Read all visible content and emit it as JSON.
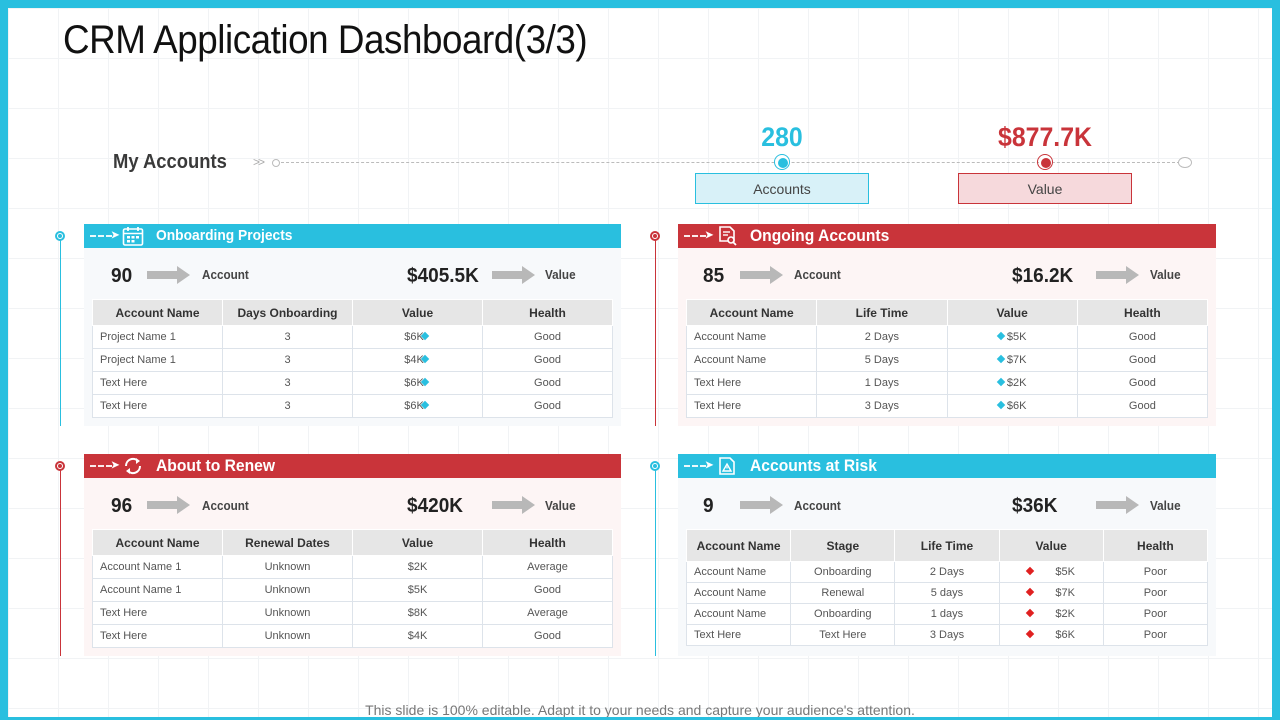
{
  "title": "CRM Application Dashboard(3/3)",
  "my_accounts": {
    "label": "My Accounts",
    "accounts_count": "280",
    "accounts_label": "Accounts",
    "value_amount": "$877.7K",
    "value_label": "Value"
  },
  "colors": {
    "blue": "#29bfdf",
    "red": "#c9343a"
  },
  "panels": {
    "onboarding": {
      "title": "Onboarding Projects",
      "icon": "calendar-icon",
      "count": "90",
      "count_label": "Account",
      "value": "$405.5K",
      "value_label": "Value",
      "columns": [
        "Account Name",
        "Days Onboarding",
        "Value",
        "Health"
      ],
      "rows": [
        [
          "Project Name 1",
          "3",
          "$6K",
          "Good"
        ],
        [
          "Project Name 1",
          "3",
          "$4K",
          "Good"
        ],
        [
          "Text Here",
          "3",
          "$6K",
          "Good"
        ],
        [
          "Text Here",
          "3",
          "$6K",
          "Good"
        ]
      ]
    },
    "ongoing": {
      "title": "Ongoing Accounts",
      "icon": "document-search-icon",
      "count": "85",
      "count_label": "Account",
      "value": "$16.2K",
      "value_label": "Value",
      "columns": [
        "Account Name",
        "Life Time",
        "Value",
        "Health"
      ],
      "rows": [
        [
          "Account Name",
          "2 Days",
          "$5K",
          "Good"
        ],
        [
          "Account Name",
          "5 Days",
          "$7K",
          "Good"
        ],
        [
          "Text Here",
          "1 Days",
          "$2K",
          "Good"
        ],
        [
          "Text Here",
          "3 Days",
          "$6K",
          "Good"
        ]
      ]
    },
    "renew": {
      "title": "About to Renew",
      "icon": "refresh-icon",
      "count": "96",
      "count_label": "Account",
      "value": "$420K",
      "value_label": "Value",
      "columns": [
        "Account Name",
        "Renewal Dates",
        "Value",
        "Health"
      ],
      "rows": [
        [
          "Account Name 1",
          "Unknown",
          "$2K",
          "Average"
        ],
        [
          "Account Name 1",
          "Unknown",
          "$5K",
          "Good"
        ],
        [
          "Text Here",
          "Unknown",
          "$8K",
          "Average"
        ],
        [
          "Text Here",
          "Unknown",
          "$4K",
          "Good"
        ]
      ]
    },
    "risk": {
      "title": "Accounts at Risk",
      "icon": "warning-icon",
      "count": "9",
      "count_label": "Account",
      "value": "$36K",
      "value_label": "Value",
      "columns": [
        "Account Name",
        "Stage",
        "Life Time",
        "Value",
        "Health"
      ],
      "rows": [
        [
          "Account Name",
          "Onboarding",
          "2 Days",
          "$5K",
          "Poor"
        ],
        [
          "Account Name",
          "Renewal",
          "5 days",
          "$7K",
          "Poor"
        ],
        [
          "Account Name",
          "Onboarding",
          "1 days",
          "$2K",
          "Poor"
        ],
        [
          "Text Here",
          "Text Here",
          "3 Days",
          "$6K",
          "Poor"
        ]
      ]
    }
  },
  "footer": "This slide is 100% editable. Adapt it to your needs and capture your audience's attention."
}
